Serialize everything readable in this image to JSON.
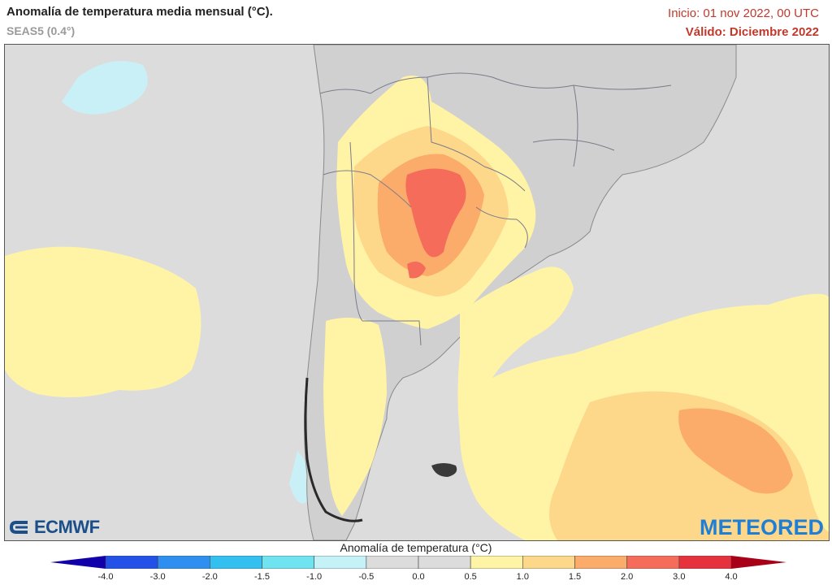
{
  "header": {
    "title": "Anomalía de temperatura media mensual (°C).",
    "subtitle": "SEAS5 (0.4°)",
    "init": "Inicio: 01 nov 2022, 00 UTC",
    "valid": "Válido: Diciembre 2022"
  },
  "logos": {
    "left": "ECMWF",
    "right": "METEORED"
  },
  "colorbar": {
    "title": "Anomalía de temperatura (°C)",
    "ticks": [
      "-4.0",
      "-3.0",
      "-2.0",
      "-1.5",
      "-1.0",
      "-0.5",
      "0.0",
      "0.5",
      "1.0",
      "1.5",
      "2.0",
      "3.0",
      "4.0"
    ],
    "colors": [
      "#1919c8",
      "#2350e6",
      "#2f8ff0",
      "#33bfef",
      "#70e3f0",
      "#c4f2f6",
      "#dcdcdc",
      "#dcdcdc",
      "#fff3a6",
      "#fdd88a",
      "#fbab6a",
      "#f56c5a",
      "#e6323c",
      "#c0192a"
    ],
    "extend_low_color": "#1100aa",
    "extend_high_color": "#a80016"
  },
  "map": {
    "land_color": "#d0d0d0",
    "ocean_color": "#dcdcdc",
    "border_color": "#7a7a8a"
  }
}
